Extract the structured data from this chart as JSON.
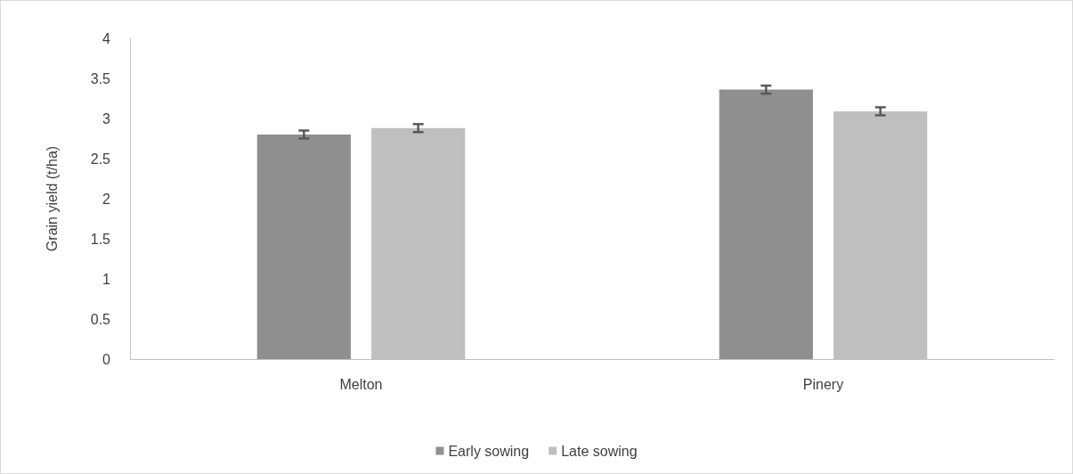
{
  "chart_data": {
    "type": "bar",
    "ylabel": "Grain yield (t/ha)",
    "categories": [
      "Melton",
      "Pinery"
    ],
    "series": [
      {
        "name": "Early sowing",
        "color": "#8f8f8f",
        "values": [
          2.8,
          3.36
        ],
        "errors": [
          0.05,
          0.05
        ]
      },
      {
        "name": "Late sowing",
        "color": "#bfbfbf",
        "values": [
          2.88,
          3.09
        ],
        "errors": [
          0.05,
          0.05
        ]
      }
    ],
    "ylim": [
      0,
      4
    ],
    "yticks": [
      0,
      0.5,
      1,
      1.5,
      2,
      2.5,
      3,
      3.5,
      4
    ],
    "grid": false,
    "legend": "bottom"
  }
}
